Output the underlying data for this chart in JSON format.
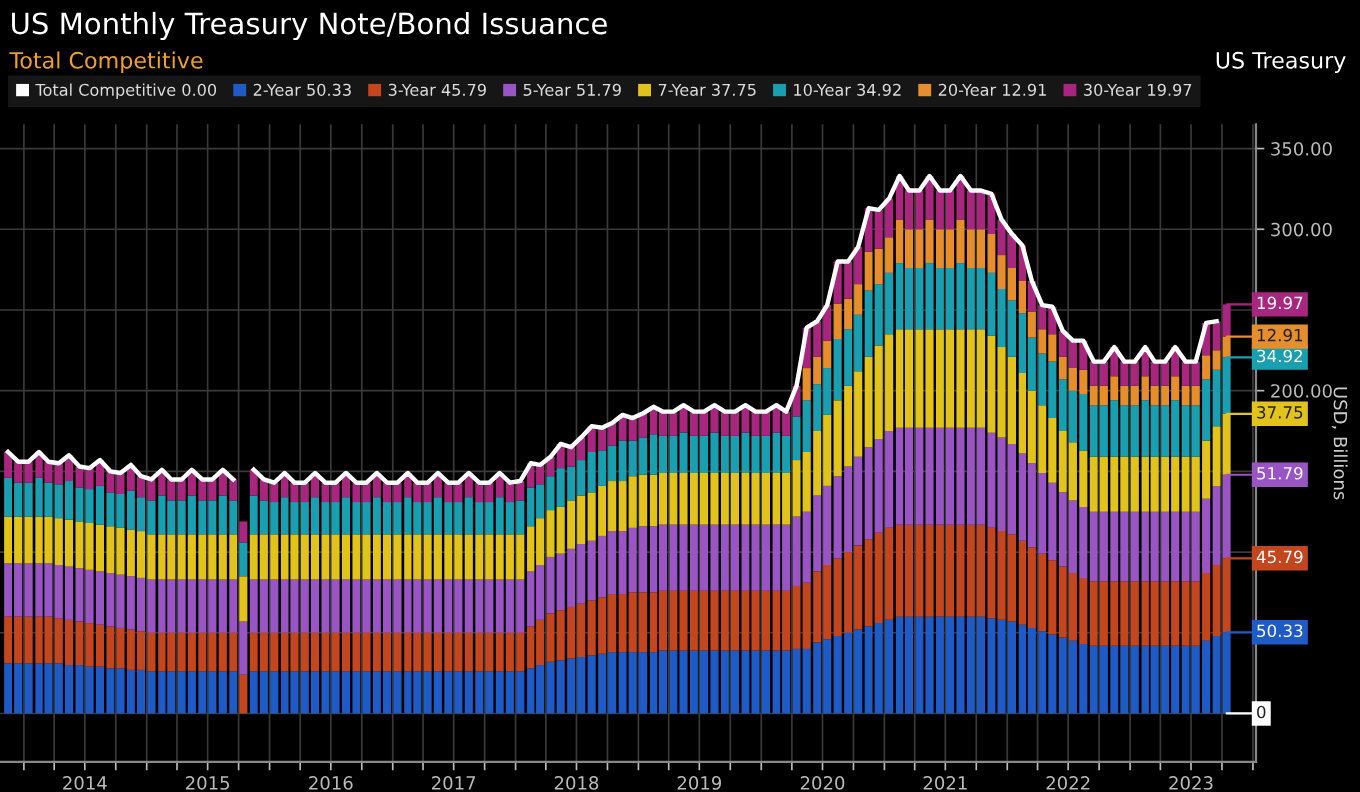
{
  "chart_data": {
    "type": "bar",
    "stacked": true,
    "title": "US Monthly Treasury Note/Bond Issuance",
    "subtitle": "Total Competitive",
    "ylabel": "USD, Billions",
    "annotations": [
      "US Treasury",
      {
        "text": "0",
        "x": "2023-10",
        "y": 0
      }
    ],
    "grid": true,
    "legend": "top",
    "xlim": [
      "2013-10-22",
      "2024-01-10"
    ],
    "xticks": [
      {
        "value": "2014-01-01",
        "label": null
      },
      {
        "value": "2014-04-01",
        "label": null
      },
      {
        "value": "2014-07-01",
        "label": "2014"
      },
      {
        "value": "2014-10-01",
        "label": null
      },
      {
        "value": "2015-01-01",
        "label": null
      },
      {
        "value": "2015-04-01",
        "label": null
      },
      {
        "value": "2015-07-01",
        "label": "2015"
      },
      {
        "value": "2015-10-01",
        "label": null
      },
      {
        "value": "2016-01-01",
        "label": null
      },
      {
        "value": "2016-04-01",
        "label": null
      },
      {
        "value": "2016-07-01",
        "label": "2016"
      },
      {
        "value": "2016-10-01",
        "label": null
      },
      {
        "value": "2017-01-01",
        "label": null
      },
      {
        "value": "2017-04-01",
        "label": null
      },
      {
        "value": "2017-07-01",
        "label": "2017"
      },
      {
        "value": "2017-10-01",
        "label": null
      },
      {
        "value": "2018-01-01",
        "label": null
      },
      {
        "value": "2018-04-01",
        "label": null
      },
      {
        "value": "2018-07-01",
        "label": "2018"
      },
      {
        "value": "2018-10-01",
        "label": null
      },
      {
        "value": "2019-01-01",
        "label": null
      },
      {
        "value": "2019-04-01",
        "label": null
      },
      {
        "value": "2019-07-01",
        "label": "2019"
      },
      {
        "value": "2019-10-01",
        "label": null
      },
      {
        "value": "2020-01-01",
        "label": null
      },
      {
        "value": "2020-04-01",
        "label": null
      },
      {
        "value": "2020-07-01",
        "label": "2020"
      },
      {
        "value": "2020-10-01",
        "label": null
      },
      {
        "value": "2021-01-01",
        "label": null
      },
      {
        "value": "2021-04-01",
        "label": null
      },
      {
        "value": "2021-07-01",
        "label": "2021"
      },
      {
        "value": "2021-10-01",
        "label": null
      },
      {
        "value": "2022-01-01",
        "label": null
      },
      {
        "value": "2022-04-01",
        "label": null
      },
      {
        "value": "2022-07-01",
        "label": "2022"
      },
      {
        "value": "2022-10-01",
        "label": null
      },
      {
        "value": "2023-01-01",
        "label": null
      },
      {
        "value": "2023-04-01",
        "label": null
      },
      {
        "value": "2023-07-01",
        "label": "2023"
      },
      {
        "value": "2023-10-01",
        "label": null
      },
      {
        "value": "2024-01-01",
        "label": null
      }
    ],
    "ylim": [
      -30,
      365
    ],
    "yticks": [
      {
        "value": 0,
        "label": null
      },
      {
        "value": 50,
        "label": null
      },
      {
        "value": 100,
        "label": null
      },
      {
        "value": 150,
        "label": null
      },
      {
        "value": 200,
        "label": "200.00"
      },
      {
        "value": 250,
        "label": null
      },
      {
        "value": 300,
        "label": "300.00"
      },
      {
        "value": 350,
        "label": "350.00"
      }
    ],
    "x": [
      "2013-11",
      "2013-12",
      "2014-01",
      "2014-02",
      "2014-03",
      "2014-04",
      "2014-05",
      "2014-06",
      "2014-07",
      "2014-08",
      "2014-09",
      "2014-10",
      "2014-11",
      "2014-12",
      "2015-01",
      "2015-02",
      "2015-03",
      "2015-04",
      "2015-05",
      "2015-06",
      "2015-07",
      "2015-08",
      "2015-09",
      "2015-10",
      "2015-11",
      "2015-12",
      "2016-01",
      "2016-02",
      "2016-03",
      "2016-04",
      "2016-05",
      "2016-06",
      "2016-07",
      "2016-08",
      "2016-09",
      "2016-10",
      "2016-11",
      "2016-12",
      "2017-01",
      "2017-02",
      "2017-03",
      "2017-04",
      "2017-05",
      "2017-06",
      "2017-07",
      "2017-08",
      "2017-09",
      "2017-10",
      "2017-11",
      "2017-12",
      "2018-01",
      "2018-02",
      "2018-03",
      "2018-04",
      "2018-05",
      "2018-06",
      "2018-07",
      "2018-08",
      "2018-09",
      "2018-10",
      "2018-11",
      "2018-12",
      "2019-01",
      "2019-02",
      "2019-03",
      "2019-04",
      "2019-05",
      "2019-06",
      "2019-07",
      "2019-08",
      "2019-09",
      "2019-10",
      "2019-11",
      "2019-12",
      "2020-01",
      "2020-02",
      "2020-03",
      "2020-04",
      "2020-05",
      "2020-06",
      "2020-07",
      "2020-08",
      "2020-09",
      "2020-10",
      "2020-11",
      "2020-12",
      "2021-01",
      "2021-02",
      "2021-03",
      "2021-04",
      "2021-05",
      "2021-06",
      "2021-07",
      "2021-08",
      "2021-09",
      "2021-10",
      "2021-11",
      "2021-12",
      "2022-01",
      "2022-02",
      "2022-03",
      "2022-04",
      "2022-05",
      "2022-06",
      "2022-07",
      "2022-08",
      "2022-09",
      "2022-10",
      "2022-11",
      "2022-12",
      "2023-01",
      "2023-02",
      "2023-03",
      "2023-04",
      "2023-05",
      "2023-06",
      "2023-07",
      "2023-08",
      "2023-09",
      "2023-10"
    ],
    "series": [
      {
        "name": "Total Competitive 0.00",
        "type": "line",
        "color": "#ffffff",
        "values": [
          162,
          156,
          156,
          162,
          156,
          155,
          160,
          153,
          152,
          157,
          150,
          149,
          154,
          147,
          145,
          151,
          145,
          145,
          151,
          145,
          145,
          151,
          145,
          null,
          151,
          145,
          143,
          149,
          143,
          143,
          149,
          143,
          143,
          149,
          143,
          143,
          149,
          143,
          143,
          149,
          143,
          143,
          149,
          143,
          143,
          149,
          143,
          143,
          149,
          143,
          144,
          155,
          154,
          159,
          167,
          165,
          171,
          178,
          177,
          180,
          185,
          183,
          186,
          190,
          187,
          187,
          191,
          187,
          187,
          191,
          187,
          187,
          191,
          187,
          187,
          191,
          187,
          203,
          239,
          243,
          253,
          280,
          280,
          289,
          313,
          312,
          319,
          333,
          324,
          324,
          333,
          324,
          324,
          333,
          324,
          324,
          322,
          306,
          297,
          290,
          268,
          253,
          252,
          237,
          231,
          231,
          218,
          218,
          227,
          218,
          218,
          227,
          218,
          218,
          227,
          218,
          218,
          242,
          243,
          null
        ]
      },
      {
        "name": "2-Year 50.33",
        "color": "#1f5bc6",
        "values": [
          31,
          31,
          31,
          31,
          31,
          31,
          30,
          30,
          29,
          29,
          28,
          28,
          27,
          27,
          26,
          26,
          26,
          26,
          26,
          26,
          26,
          26,
          26,
          null,
          26,
          26,
          26,
          26,
          26,
          26,
          26,
          26,
          26,
          26,
          26,
          26,
          26,
          26,
          26,
          26,
          26,
          26,
          26,
          26,
          26,
          26,
          26,
          26,
          26,
          26,
          26,
          28,
          30,
          32,
          33,
          34,
          35,
          36,
          37,
          38,
          38,
          38,
          38,
          38,
          39,
          39,
          39,
          39,
          39,
          39,
          39,
          39,
          39,
          39,
          39,
          39,
          39,
          40,
          40,
          44,
          46,
          48,
          50,
          52,
          54,
          56,
          58,
          60,
          60,
          60,
          60,
          60,
          60,
          60,
          60,
          60,
          59,
          58,
          57,
          55,
          53,
          51,
          49,
          47,
          45,
          43,
          42,
          42,
          42,
          42,
          42,
          42,
          42,
          42,
          42,
          42,
          42,
          45,
          48,
          50.33
        ],
        "value_labels": [
          null,
          null,
          null,
          null,
          null,
          null,
          null,
          null,
          null,
          null,
          null,
          null,
          null,
          null,
          null,
          null,
          null,
          null,
          null,
          null,
          null,
          null,
          null,
          null,
          null,
          null,
          null,
          null,
          null,
          null,
          null,
          null,
          null,
          null,
          null,
          null,
          null,
          null,
          null,
          null,
          null,
          null,
          null,
          null,
          null,
          null,
          null,
          null,
          null,
          null,
          null,
          null,
          null,
          null,
          null,
          null,
          null,
          null,
          null,
          null,
          null,
          null,
          null,
          null,
          null,
          null,
          null,
          null,
          null,
          null,
          null,
          null,
          null,
          null,
          null,
          null,
          null,
          null,
          null,
          null,
          null,
          null,
          null,
          null,
          null,
          null,
          null,
          null,
          null,
          null,
          null,
          null,
          null,
          null,
          null,
          null,
          null,
          null,
          null,
          null,
          null,
          null,
          null,
          null,
          null,
          null,
          null,
          null,
          null,
          null,
          null,
          null,
          null,
          null,
          null,
          null,
          null,
          null,
          null,
          "50.33"
        ]
      },
      {
        "name": "3-Year 45.79",
        "color": "#c4461e",
        "values": [
          29,
          29,
          29,
          29,
          29,
          28,
          28,
          27,
          27,
          26,
          26,
          25,
          25,
          24,
          24,
          24,
          24,
          24,
          24,
          24,
          24,
          24,
          24,
          24,
          24,
          24,
          24,
          24,
          24,
          24,
          24,
          24,
          24,
          24,
          24,
          24,
          24,
          24,
          24,
          24,
          24,
          24,
          24,
          24,
          24,
          24,
          24,
          24,
          24,
          24,
          24,
          26,
          28,
          30,
          31,
          32,
          33,
          34,
          35,
          36,
          36,
          37,
          37,
          37,
          37,
          37,
          37,
          37,
          37,
          37,
          37,
          37,
          37,
          37,
          37,
          37,
          37,
          39,
          41,
          44,
          46,
          48,
          50,
          52,
          54,
          56,
          57,
          57,
          57,
          57,
          57,
          57,
          57,
          57,
          57,
          57,
          56,
          55,
          54,
          52,
          50,
          48,
          46,
          44,
          42,
          41,
          40,
          40,
          40,
          40,
          40,
          40,
          40,
          40,
          40,
          40,
          40,
          42,
          44,
          45.79
        ],
        "value_labels": [
          null,
          null,
          null,
          null,
          null,
          null,
          null,
          null,
          null,
          null,
          null,
          null,
          null,
          null,
          null,
          null,
          null,
          null,
          null,
          null,
          null,
          null,
          null,
          null,
          null,
          null,
          null,
          null,
          null,
          null,
          null,
          null,
          null,
          null,
          null,
          null,
          null,
          null,
          null,
          null,
          null,
          null,
          null,
          null,
          null,
          null,
          null,
          null,
          null,
          null,
          null,
          null,
          null,
          null,
          null,
          null,
          null,
          null,
          null,
          null,
          null,
          null,
          null,
          null,
          null,
          null,
          null,
          null,
          null,
          null,
          null,
          null,
          null,
          null,
          null,
          null,
          null,
          null,
          null,
          null,
          null,
          null,
          null,
          null,
          null,
          null,
          null,
          null,
          null,
          null,
          null,
          null,
          null,
          null,
          null,
          null,
          null,
          null,
          null,
          null,
          null,
          null,
          null,
          null,
          null,
          null,
          null,
          null,
          null,
          null,
          null,
          null,
          null,
          null,
          null,
          null,
          null,
          null,
          null,
          "45.79"
        ]
      },
      {
        "name": "5-Year 51.79",
        "color": "#9a55c4",
        "values": [
          33,
          33,
          33,
          33,
          33,
          33,
          33,
          33,
          33,
          33,
          33,
          33,
          33,
          33,
          33,
          33,
          33,
          33,
          33,
          33,
          33,
          33,
          33,
          33,
          33,
          33,
          33,
          33,
          33,
          33,
          33,
          33,
          33,
          33,
          33,
          33,
          33,
          33,
          33,
          33,
          33,
          33,
          33,
          33,
          33,
          33,
          33,
          33,
          33,
          33,
          33,
          34,
          34,
          35,
          35,
          36,
          37,
          37,
          38,
          39,
          39,
          40,
          41,
          41,
          41,
          41,
          41,
          41,
          41,
          41,
          41,
          41,
          41,
          41,
          41,
          41,
          41,
          43,
          44,
          47,
          49,
          51,
          53,
          55,
          57,
          58,
          60,
          60,
          60,
          60,
          60,
          60,
          60,
          60,
          60,
          60,
          59,
          58,
          56,
          54,
          52,
          50,
          48,
          46,
          45,
          44,
          43,
          43,
          43,
          43,
          43,
          43,
          43,
          43,
          43,
          43,
          43,
          46,
          49,
          51.79
        ],
        "value_labels": [
          null,
          null,
          null,
          null,
          null,
          null,
          null,
          null,
          null,
          null,
          null,
          null,
          null,
          null,
          null,
          null,
          null,
          null,
          null,
          null,
          null,
          null,
          null,
          null,
          null,
          null,
          null,
          null,
          null,
          null,
          null,
          null,
          null,
          null,
          null,
          null,
          null,
          null,
          null,
          null,
          null,
          null,
          null,
          null,
          null,
          null,
          null,
          null,
          null,
          null,
          null,
          null,
          null,
          null,
          null,
          null,
          null,
          null,
          null,
          null,
          null,
          null,
          null,
          null,
          null,
          null,
          null,
          null,
          null,
          null,
          null,
          null,
          null,
          null,
          null,
          null,
          null,
          null,
          null,
          null,
          null,
          null,
          null,
          null,
          null,
          null,
          null,
          null,
          null,
          null,
          null,
          null,
          null,
          null,
          null,
          null,
          null,
          null,
          null,
          null,
          null,
          null,
          null,
          null,
          null,
          null,
          null,
          null,
          null,
          null,
          null,
          null,
          null,
          null,
          null,
          null,
          null,
          null,
          null,
          "51.79"
        ]
      },
      {
        "name": "7-Year 37.75",
        "color": "#e2c31c",
        "values": [
          29,
          29,
          29,
          29,
          29,
          29,
          29,
          29,
          29,
          29,
          29,
          29,
          29,
          29,
          28,
          28,
          28,
          28,
          28,
          28,
          28,
          28,
          28,
          28,
          28,
          28,
          28,
          28,
          28,
          28,
          28,
          28,
          28,
          28,
          28,
          28,
          28,
          28,
          28,
          28,
          28,
          28,
          28,
          28,
          28,
          28,
          28,
          28,
          28,
          28,
          28,
          28,
          29,
          29,
          29,
          30,
          30,
          30,
          31,
          31,
          31,
          32,
          32,
          32,
          32,
          32,
          32,
          32,
          32,
          32,
          32,
          32,
          32,
          32,
          32,
          32,
          32,
          35,
          37,
          40,
          44,
          47,
          50,
          53,
          56,
          58,
          60,
          61,
          61,
          61,
          61,
          61,
          61,
          61,
          61,
          61,
          60,
          56,
          54,
          50,
          45,
          42,
          40,
          38,
          36,
          35,
          34,
          34,
          34,
          34,
          34,
          34,
          34,
          34,
          34,
          34,
          34,
          36,
          37,
          37.75
        ],
        "value_labels": [
          null,
          null,
          null,
          null,
          null,
          null,
          null,
          null,
          null,
          null,
          null,
          null,
          null,
          null,
          null,
          null,
          null,
          null,
          null,
          null,
          null,
          null,
          null,
          null,
          null,
          null,
          null,
          null,
          null,
          null,
          null,
          null,
          null,
          null,
          null,
          null,
          null,
          null,
          null,
          null,
          null,
          null,
          null,
          null,
          null,
          null,
          null,
          null,
          null,
          null,
          null,
          null,
          null,
          null,
          null,
          null,
          null,
          null,
          null,
          null,
          null,
          null,
          null,
          null,
          null,
          null,
          null,
          null,
          null,
          null,
          null,
          null,
          null,
          null,
          null,
          null,
          null,
          null,
          null,
          null,
          null,
          null,
          null,
          null,
          null,
          null,
          null,
          null,
          null,
          null,
          null,
          null,
          null,
          null,
          null,
          null,
          null,
          null,
          null,
          null,
          null,
          null,
          null,
          null,
          null,
          null,
          null,
          null,
          null,
          null,
          null,
          null,
          null,
          null,
          null,
          null,
          null,
          null,
          null,
          "37.75"
        ]
      },
      {
        "name": "10-Year 34.92",
        "color": "#1a9fb0",
        "values": [
          24,
          21,
          21,
          24,
          21,
          21,
          24,
          21,
          21,
          24,
          21,
          21,
          24,
          21,
          21,
          24,
          21,
          21,
          24,
          21,
          21,
          24,
          21,
          21,
          24,
          21,
          20,
          23,
          20,
          20,
          23,
          20,
          20,
          23,
          20,
          20,
          23,
          20,
          20,
          23,
          20,
          20,
          23,
          20,
          20,
          23,
          20,
          20,
          23,
          20,
          21,
          24,
          21,
          21,
          24,
          21,
          22,
          25,
          22,
          22,
          25,
          22,
          23,
          25,
          23,
          23,
          25,
          23,
          23,
          25,
          23,
          23,
          25,
          23,
          23,
          25,
          23,
          27,
          32,
          29,
          29,
          38,
          35,
          35,
          41,
          38,
          38,
          41,
          38,
          38,
          41,
          38,
          38,
          41,
          38,
          38,
          39,
          36,
          35,
          37,
          33,
          32,
          35,
          32,
          32,
          35,
          32,
          32,
          35,
          32,
          32,
          35,
          32,
          32,
          35,
          32,
          32,
          38,
          35,
          34.92
        ],
        "value_labels": [
          null,
          null,
          null,
          null,
          null,
          null,
          null,
          null,
          null,
          null,
          null,
          null,
          null,
          null,
          null,
          null,
          null,
          null,
          null,
          null,
          null,
          null,
          null,
          null,
          null,
          null,
          null,
          null,
          null,
          null,
          null,
          null,
          null,
          null,
          null,
          null,
          null,
          null,
          null,
          null,
          null,
          null,
          null,
          null,
          null,
          null,
          null,
          null,
          null,
          null,
          null,
          null,
          null,
          null,
          null,
          null,
          null,
          null,
          null,
          null,
          null,
          null,
          null,
          null,
          null,
          null,
          null,
          null,
          null,
          null,
          null,
          null,
          null,
          null,
          null,
          null,
          null,
          null,
          null,
          null,
          null,
          null,
          null,
          null,
          null,
          null,
          null,
          null,
          null,
          null,
          null,
          null,
          null,
          null,
          null,
          null,
          null,
          null,
          null,
          null,
          null,
          null,
          null,
          null,
          null,
          null,
          null,
          null,
          null,
          null,
          null,
          null,
          null,
          null,
          null,
          null,
          null,
          null,
          null,
          "34.92"
        ]
      },
      {
        "name": "20-Year 12.91",
        "color": "#e68e2c",
        "values": [
          null,
          null,
          null,
          null,
          null,
          null,
          null,
          null,
          null,
          null,
          null,
          null,
          null,
          null,
          null,
          null,
          null,
          null,
          null,
          null,
          null,
          null,
          null,
          null,
          null,
          null,
          null,
          null,
          null,
          null,
          null,
          null,
          null,
          null,
          null,
          null,
          null,
          null,
          null,
          null,
          null,
          null,
          null,
          null,
          null,
          null,
          null,
          null,
          null,
          null,
          null,
          null,
          null,
          null,
          null,
          null,
          null,
          null,
          null,
          null,
          null,
          null,
          null,
          null,
          null,
          null,
          null,
          null,
          null,
          null,
          null,
          null,
          null,
          null,
          null,
          null,
          null,
          null,
          20,
          17,
          17,
          22,
          19,
          19,
          24,
          22,
          22,
          27,
          24,
          24,
          27,
          24,
          24,
          27,
          24,
          24,
          24,
          21,
          20,
          20,
          16,
          15,
          17,
          14,
          14,
          15,
          12,
          12,
          15,
          12,
          12,
          15,
          12,
          12,
          15,
          12,
          12,
          15,
          12,
          12.91
        ],
        "value_labels": [
          null,
          null,
          null,
          null,
          null,
          null,
          null,
          null,
          null,
          null,
          null,
          null,
          null,
          null,
          null,
          null,
          null,
          null,
          null,
          null,
          null,
          null,
          null,
          null,
          null,
          null,
          null,
          null,
          null,
          null,
          null,
          null,
          null,
          null,
          null,
          null,
          null,
          null,
          null,
          null,
          null,
          null,
          null,
          null,
          null,
          null,
          null,
          null,
          null,
          null,
          null,
          null,
          null,
          null,
          null,
          null,
          null,
          null,
          null,
          null,
          null,
          null,
          null,
          null,
          null,
          null,
          null,
          null,
          null,
          null,
          null,
          null,
          null,
          null,
          null,
          null,
          null,
          null,
          null,
          null,
          null,
          null,
          null,
          null,
          null,
          null,
          null,
          null,
          null,
          null,
          null,
          null,
          null,
          null,
          null,
          null,
          null,
          null,
          null,
          null,
          null,
          null,
          null,
          null,
          null,
          null,
          null,
          null,
          null,
          null,
          null,
          null,
          null,
          null,
          null,
          null,
          null,
          null,
          null,
          "12.91"
        ]
      },
      {
        "name": "30-Year 19.97",
        "color": "#a8267e",
        "values": [
          16,
          13,
          13,
          16,
          13,
          13,
          16,
          13,
          13,
          16,
          13,
          13,
          16,
          13,
          13,
          16,
          13,
          13,
          16,
          13,
          13,
          16,
          13,
          13,
          16,
          13,
          12,
          15,
          12,
          12,
          15,
          12,
          12,
          15,
          12,
          12,
          15,
          12,
          12,
          15,
          12,
          12,
          15,
          12,
          12,
          15,
          12,
          12,
          15,
          12,
          12,
          15,
          12,
          12,
          15,
          12,
          14,
          16,
          14,
          14,
          16,
          14,
          15,
          17,
          15,
          15,
          17,
          15,
          15,
          17,
          15,
          15,
          17,
          15,
          15,
          17,
          15,
          19,
          25,
          22,
          22,
          26,
          23,
          23,
          27,
          24,
          24,
          27,
          24,
          24,
          27,
          24,
          24,
          27,
          24,
          24,
          25,
          22,
          21,
          22,
          19,
          15,
          17,
          16,
          17,
          18,
          15,
          15,
          18,
          15,
          15,
          18,
          15,
          15,
          18,
          15,
          15,
          20,
          18,
          19.97
        ],
        "value_labels": [
          null,
          null,
          null,
          null,
          null,
          null,
          null,
          null,
          null,
          null,
          null,
          null,
          null,
          null,
          null,
          null,
          null,
          null,
          null,
          null,
          null,
          null,
          null,
          null,
          null,
          null,
          null,
          null,
          null,
          null,
          null,
          null,
          null,
          null,
          null,
          null,
          null,
          null,
          null,
          null,
          null,
          null,
          null,
          null,
          null,
          null,
          null,
          null,
          null,
          null,
          null,
          null,
          null,
          null,
          null,
          null,
          null,
          null,
          null,
          null,
          null,
          null,
          null,
          null,
          null,
          null,
          null,
          null,
          null,
          null,
          null,
          null,
          null,
          null,
          null,
          null,
          null,
          null,
          null,
          null,
          null,
          null,
          null,
          null,
          null,
          null,
          null,
          null,
          null,
          null,
          null,
          null,
          null,
          null,
          null,
          null,
          null,
          null,
          null,
          null,
          null,
          null,
          null,
          null,
          null,
          null,
          null,
          null,
          null,
          null,
          null,
          null,
          null,
          null,
          null,
          null,
          null,
          null,
          null,
          "19.97"
        ]
      }
    ]
  }
}
